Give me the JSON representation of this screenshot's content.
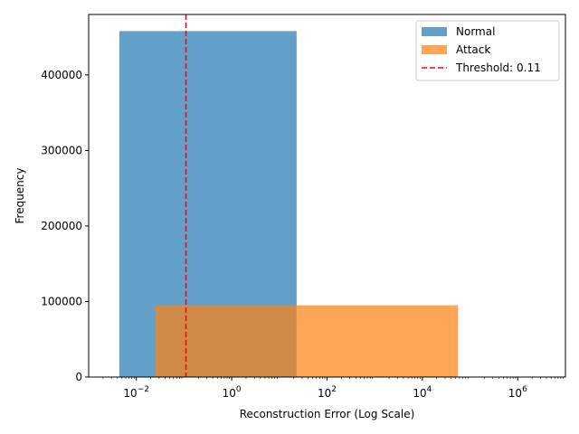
{
  "chart_data": {
    "type": "bar",
    "subtype": "histogram",
    "title": "",
    "xlabel": "Reconstruction Error (Log Scale)",
    "ylabel": "Frequency",
    "xscale": "log",
    "xlim": [
      0.001,
      10000000
    ],
    "ylim": [
      0,
      480000
    ],
    "grid": false,
    "legend_position": "top-right",
    "xticks": [
      {
        "value": 0.01,
        "base": "10",
        "exp": "−2"
      },
      {
        "value": 1,
        "base": "10",
        "exp": "0"
      },
      {
        "value": 100,
        "base": "10",
        "exp": "2"
      },
      {
        "value": 10000,
        "base": "10",
        "exp": "4"
      },
      {
        "value": 1000000,
        "base": "10",
        "exp": "6"
      }
    ],
    "yticks": [
      {
        "value": 0,
        "label": "0"
      },
      {
        "value": 100000,
        "label": "100000"
      },
      {
        "value": 200000,
        "label": "200000"
      },
      {
        "value": 300000,
        "label": "300000"
      },
      {
        "value": 400000,
        "label": "400000"
      }
    ],
    "series": [
      {
        "name": "Normal",
        "color": "#1f77b4",
        "opacity": 0.7,
        "bins": [
          {
            "x0": 0.0044,
            "x1": 23,
            "count": 458000
          }
        ]
      },
      {
        "name": "Attack",
        "color": "#ff7f0e",
        "opacity": 0.7,
        "bins": [
          {
            "x0": 0.025,
            "x1": 23,
            "count": 95000
          },
          {
            "x0": 23,
            "x1": 56000,
            "count": 95000
          }
        ]
      }
    ],
    "threshold": {
      "value": 0.11,
      "label": "Threshold: 0.11",
      "color": "#ff0000",
      "style": "dashed"
    }
  }
}
